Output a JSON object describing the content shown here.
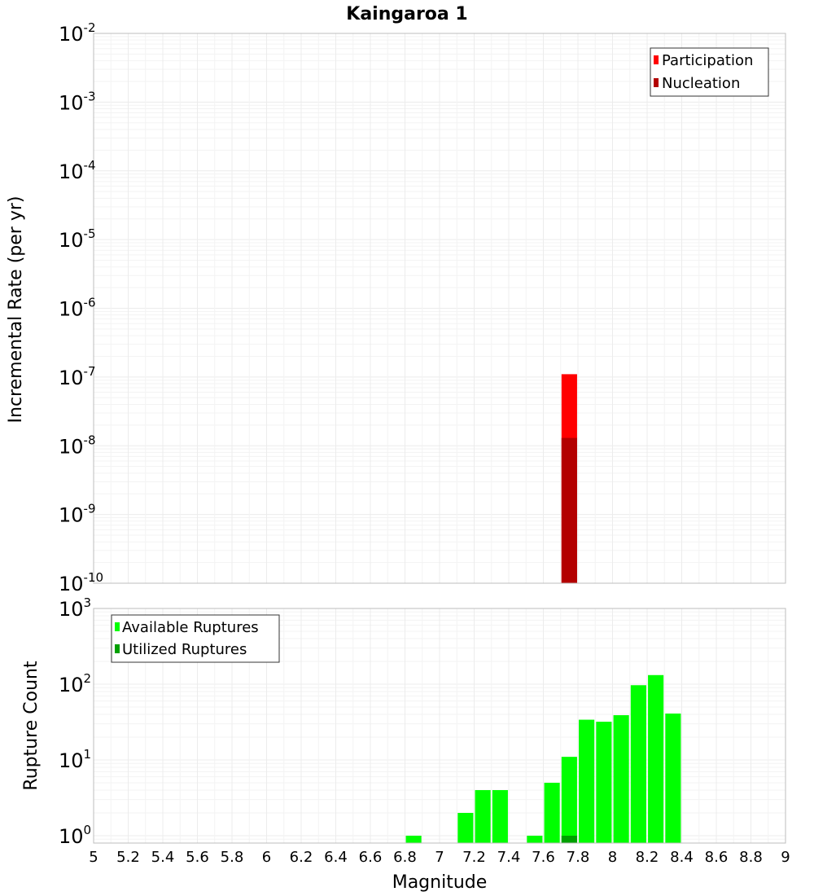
{
  "chart_data": [
    {
      "type": "bar",
      "title": "Kaingaroa 1",
      "ylabel": "Incremental Rate (per yr)",
      "xlim": [
        5,
        9
      ],
      "ylim": [
        1e-10,
        0.01
      ],
      "yscale": "log",
      "grid": true,
      "legend_position": "top-right",
      "y_ticks": [
        {
          "base": "10",
          "exp": "-2"
        },
        {
          "base": "10",
          "exp": "-3"
        },
        {
          "base": "10",
          "exp": "-4"
        },
        {
          "base": "10",
          "exp": "-5"
        },
        {
          "base": "10",
          "exp": "-6"
        },
        {
          "base": "10",
          "exp": "-7"
        },
        {
          "base": "10",
          "exp": "-8"
        },
        {
          "base": "10",
          "exp": "-9"
        },
        {
          "base": "10",
          "exp": "-10"
        }
      ],
      "series": [
        {
          "name": "Participation",
          "color": "#ff0000",
          "x": [
            7.75
          ],
          "values": [
            1.1e-07
          ]
        },
        {
          "name": "Nucleation",
          "color": "#b30000",
          "x": [
            7.75
          ],
          "values": [
            1.3e-08
          ]
        }
      ]
    },
    {
      "type": "bar",
      "ylabel": "Rupture Count",
      "xlabel": "Magnitude",
      "xlim": [
        5,
        9
      ],
      "ylim": [
        0.8,
        1000
      ],
      "yscale": "log",
      "grid": true,
      "legend_position": "top-left",
      "y_ticks": [
        {
          "base": "10",
          "exp": "3"
        },
        {
          "base": "10",
          "exp": "2"
        },
        {
          "base": "10",
          "exp": "1"
        },
        {
          "base": "10",
          "exp": "0"
        }
      ],
      "x_ticks": [
        "5",
        "5.2",
        "5.4",
        "5.6",
        "5.8",
        "6",
        "6.2",
        "6.4",
        "6.6",
        "6.8",
        "7",
        "7.2",
        "7.4",
        "7.6",
        "7.8",
        "8",
        "8.2",
        "8.4",
        "8.6",
        "8.8",
        "9"
      ],
      "series": [
        {
          "name": "Available Ruptures",
          "color": "#00ff00",
          "x": [
            6.85,
            7.15,
            7.25,
            7.35,
            7.55,
            7.65,
            7.75,
            7.85,
            7.95,
            8.05,
            8.15,
            8.25,
            8.35
          ],
          "values": [
            1,
            2,
            4,
            4,
            1,
            5,
            11,
            34,
            32,
            39,
            97,
            132,
            41
          ]
        },
        {
          "name": "Utilized Ruptures",
          "color": "#00a000",
          "x": [
            7.75
          ],
          "values": [
            1
          ]
        }
      ]
    }
  ]
}
